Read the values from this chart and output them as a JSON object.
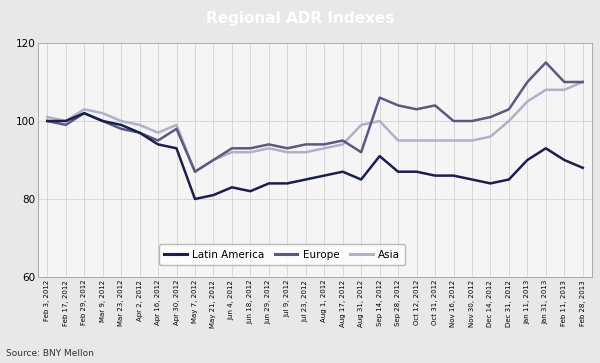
{
  "title": "Regional ADR Indexes",
  "title_bg_color": "#2e3261",
  "title_text_color": "#ffffff",
  "source_text": "Source: BNY Mellon",
  "ylim": [
    60,
    120
  ],
  "yticks": [
    60,
    80,
    100,
    120
  ],
  "legend_labels": [
    "Latin America",
    "Europe",
    "Asia"
  ],
  "latin_america_color": "#1a1f4e",
  "europe_color": "#5a5a80",
  "asia_color": "#b0b0c8",
  "chart_bg_color": "#f5f5f5",
  "outer_bg_color": "#e8e8e8",
  "x_labels": [
    "Feb 3, 2012",
    "Feb 17, 2012",
    "Feb 29, 2012",
    "Mar 9, 2012",
    "Mar 23, 2012",
    "Apr 2, 2012",
    "Apr 16, 2012",
    "Apr 30, 2012",
    "May 7, 2012",
    "May 21, 2012",
    "Jun 4, 2012",
    "Jun 18, 2012",
    "Jun 29, 2012",
    "Jul 9, 2012",
    "Jul 23, 2012",
    "Aug 1, 2012",
    "Aug 17, 2012",
    "Aug 31, 2012",
    "Sep 14, 2012",
    "Sep 28, 2012",
    "Oct 12, 2012",
    "Oct 31, 2012",
    "Nov 16, 2012",
    "Nov 30, 2012",
    "Dec 14, 2012",
    "Dec 31, 2012",
    "Jan 11, 2013",
    "Jan 31, 2013",
    "Feb 11, 2013",
    "Feb 28, 2013"
  ],
  "latin_america": [
    100,
    100,
    102,
    100,
    99,
    97,
    94,
    93,
    80,
    81,
    83,
    82,
    84,
    84,
    85,
    86,
    87,
    85,
    91,
    87,
    87,
    86,
    86,
    85,
    84,
    85,
    90,
    93,
    90,
    88
  ],
  "europe": [
    100,
    99,
    102,
    100,
    98,
    97,
    95,
    98,
    87,
    90,
    93,
    93,
    94,
    93,
    94,
    94,
    95,
    92,
    106,
    104,
    103,
    104,
    100,
    100,
    101,
    103,
    110,
    115,
    110,
    110
  ],
  "asia": [
    101,
    100,
    103,
    102,
    100,
    99,
    97,
    99,
    87,
    90,
    92,
    92,
    93,
    92,
    92,
    93,
    94,
    99,
    100,
    95,
    95,
    95,
    95,
    95,
    96,
    100,
    105,
    108,
    108,
    110
  ]
}
